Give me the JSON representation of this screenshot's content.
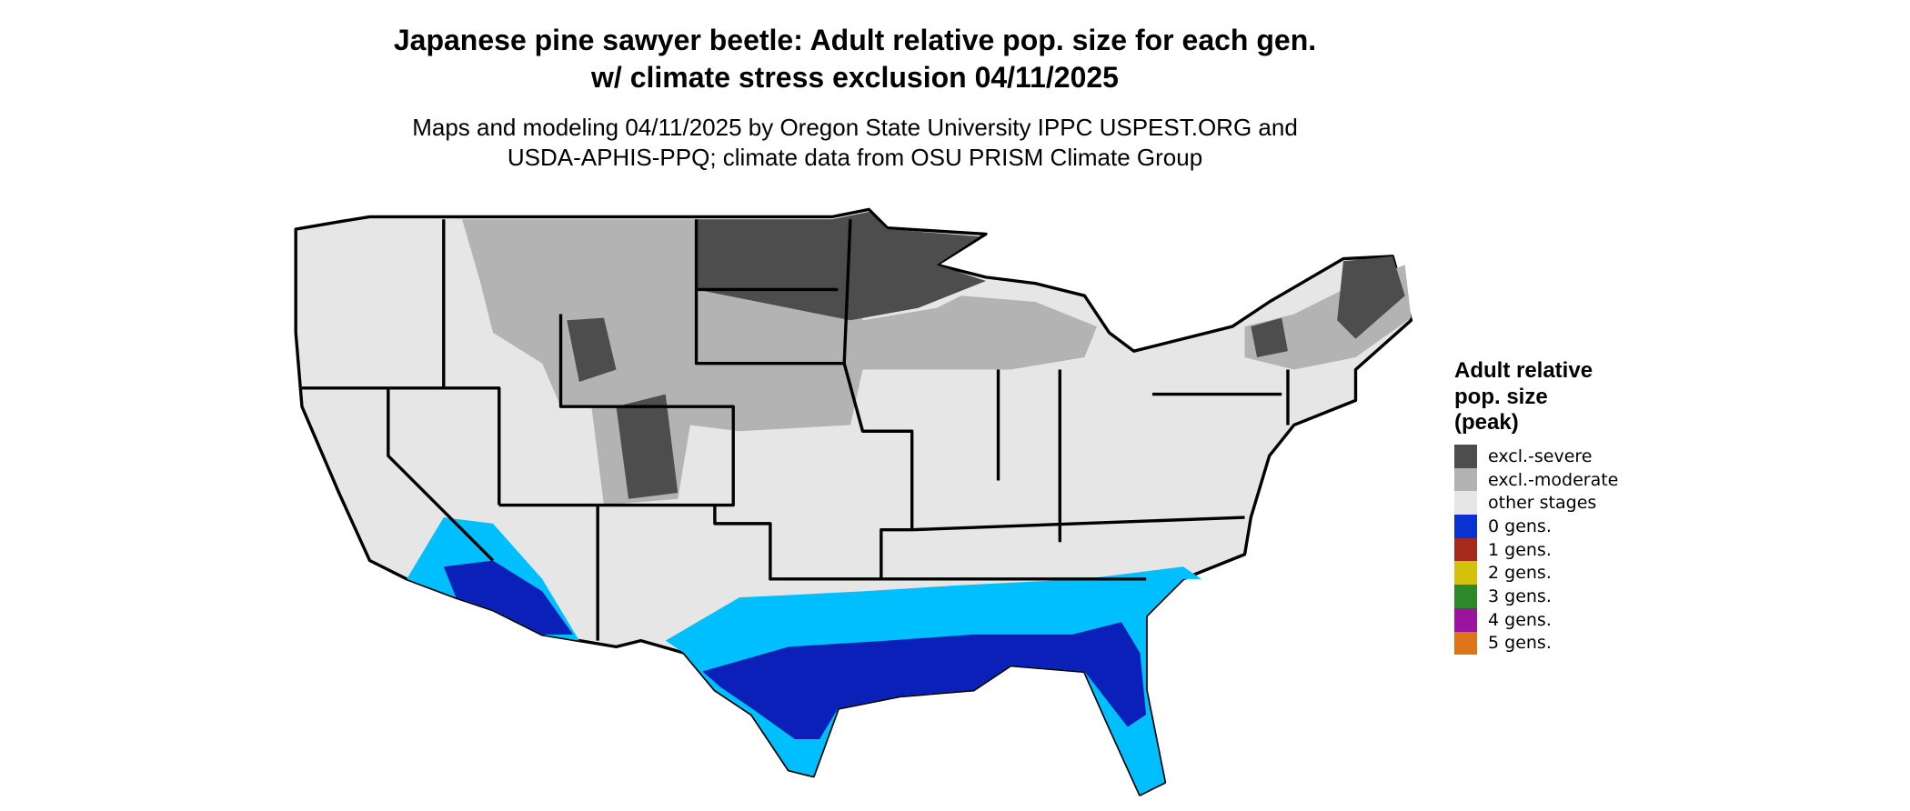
{
  "title": "Japanese pine sawyer beetle: Adult relative pop. size for each gen. w/ climate stress exclusion 04/11/2025",
  "subtitle": "Maps and modeling 04/11/2025 by Oregon State University IPPC USPEST.ORG and USDA-APHIS-PPQ; climate data from OSU PRISM Climate Group",
  "legend": {
    "title": "Adult relative pop. size (peak)",
    "items": [
      {
        "label": "excl.-severe",
        "color": "#4d4d4d"
      },
      {
        "label": "excl.-moderate",
        "color": "#b3b3b3"
      },
      {
        "label": "other stages",
        "color": "#e6e6e6"
      },
      {
        "label": "0 gens.",
        "color": "#0a32d2"
      },
      {
        "label": "1 gens.",
        "color": "#a52a1a"
      },
      {
        "label": "2 gens.",
        "color": "#d4c20a"
      },
      {
        "label": "3 gens.",
        "color": "#2a8a2a"
      },
      {
        "label": "4 gens.",
        "color": "#9b139e"
      },
      {
        "label": "5 gens.",
        "color": "#dd7417"
      }
    ]
  }
}
